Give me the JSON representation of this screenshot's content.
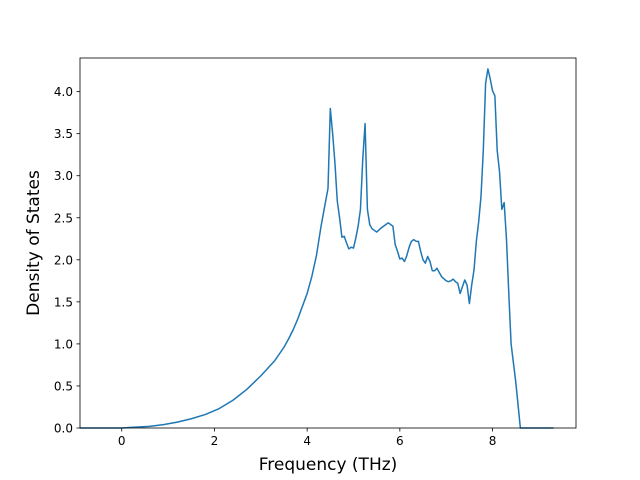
{
  "chart_data": {
    "type": "line",
    "xlabel": "Frequency (THz)",
    "ylabel": "Density of States",
    "xlim": [
      -0.9,
      9.8
    ],
    "ylim": [
      0,
      4.4
    ],
    "xticks": [
      0,
      2,
      4,
      6,
      8
    ],
    "xtick_labels": [
      "0",
      "2",
      "4",
      "6",
      "8"
    ],
    "yticks": [
      0.0,
      0.5,
      1.0,
      1.5,
      2.0,
      2.5,
      3.0,
      3.5,
      4.0
    ],
    "ytick_labels": [
      "0.0",
      "0.5",
      "1.0",
      "1.5",
      "2.0",
      "2.5",
      "3.0",
      "3.5",
      "4.0"
    ],
    "grid": false,
    "line_color": "#1f77b4",
    "series": [
      {
        "x": [
          -0.88,
          0.0,
          0.3,
          0.6,
          0.9,
          1.2,
          1.5,
          1.8,
          2.1,
          2.4,
          2.7,
          3.0,
          3.1,
          3.2,
          3.3,
          3.4,
          3.5,
          3.6,
          3.7,
          3.8,
          3.9,
          4.0,
          4.1,
          4.2,
          4.3,
          4.4,
          4.45,
          4.5,
          4.55,
          4.6,
          4.65,
          4.7,
          4.75,
          4.8,
          4.85,
          4.9,
          4.95,
          5.0,
          5.05,
          5.1,
          5.15,
          5.2,
          5.25,
          5.3,
          5.35,
          5.4,
          5.5,
          5.6,
          5.7,
          5.75,
          5.8,
          5.85,
          5.9,
          5.95,
          6.0,
          6.05,
          6.1,
          6.15,
          6.2,
          6.25,
          6.3,
          6.35,
          6.4,
          6.45,
          6.5,
          6.55,
          6.6,
          6.65,
          6.7,
          6.75,
          6.8,
          6.9,
          7.0,
          7.05,
          7.1,
          7.15,
          7.2,
          7.25,
          7.3,
          7.35,
          7.4,
          7.45,
          7.5,
          7.55,
          7.6,
          7.65,
          7.7,
          7.75,
          7.8,
          7.85,
          7.9,
          7.95,
          8.0,
          8.05,
          8.1,
          8.15,
          8.2,
          8.25,
          8.3,
          8.35,
          8.4,
          8.5,
          8.6,
          9.3
        ],
        "y": [
          0.0,
          0.0,
          0.01,
          0.02,
          0.04,
          0.07,
          0.11,
          0.16,
          0.23,
          0.33,
          0.46,
          0.62,
          0.68,
          0.74,
          0.8,
          0.88,
          0.96,
          1.06,
          1.17,
          1.3,
          1.45,
          1.6,
          1.8,
          2.05,
          2.4,
          2.7,
          2.85,
          3.8,
          3.5,
          3.15,
          2.7,
          2.5,
          2.27,
          2.28,
          2.2,
          2.13,
          2.15,
          2.14,
          2.26,
          2.4,
          2.6,
          3.2,
          3.62,
          2.6,
          2.42,
          2.37,
          2.33,
          2.38,
          2.42,
          2.44,
          2.42,
          2.4,
          2.18,
          2.1,
          2.01,
          2.02,
          1.98,
          2.05,
          2.15,
          2.22,
          2.24,
          2.22,
          2.22,
          2.1,
          2.0,
          1.96,
          2.04,
          1.98,
          1.87,
          1.87,
          1.9,
          1.8,
          1.75,
          1.74,
          1.75,
          1.77,
          1.74,
          1.72,
          1.6,
          1.68,
          1.76,
          1.7,
          1.48,
          1.7,
          1.88,
          2.22,
          2.45,
          2.75,
          3.3,
          4.1,
          4.27,
          4.15,
          4.01,
          3.95,
          3.3,
          3.05,
          2.6,
          2.68,
          2.25,
          1.6,
          1.0,
          0.55,
          0.0,
          0.0
        ]
      }
    ]
  }
}
